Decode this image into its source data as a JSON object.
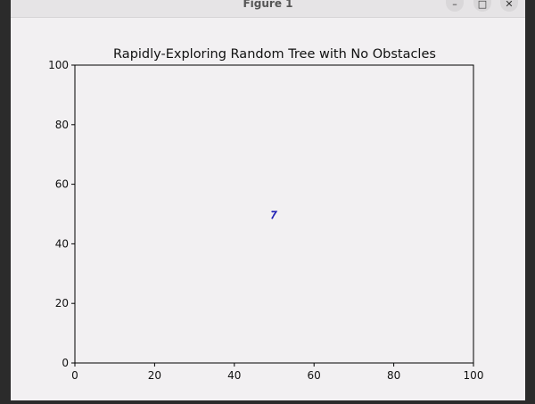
{
  "window": {
    "title": "Figure 1",
    "buttons": {
      "minimize": "–",
      "maximize": "□",
      "close": "✕"
    }
  },
  "chart_data": {
    "type": "line",
    "title": "Rapidly-Exploring Random Tree with No Obstacles",
    "xlabel": "",
    "ylabel": "",
    "xlim": [
      0,
      100
    ],
    "ylim": [
      0,
      100
    ],
    "x_ticks": [
      0,
      20,
      40,
      60,
      80,
      100
    ],
    "y_ticks": [
      0,
      20,
      40,
      60,
      80,
      100
    ],
    "grid": false,
    "series": [
      {
        "color": "#1f1fb4",
        "points": [
          [
            49.5,
            50.8
          ],
          [
            50.5,
            50.8
          ],
          [
            50.0,
            49.8
          ],
          [
            49.5,
            48.6
          ]
        ]
      }
    ]
  }
}
